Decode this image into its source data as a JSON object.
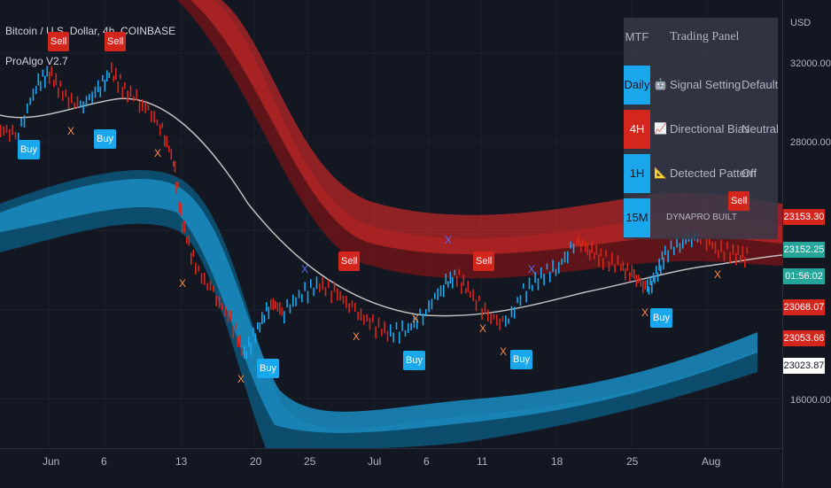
{
  "header": {
    "symbol_line": "Bitcoin / U.S. Dollar, 4h, COINBASE",
    "indicator_name": "ProAlgo V2.7"
  },
  "axis": {
    "currency": "USD",
    "y_labels": [
      "32000.00",
      "28000.00",
      "16000.00"
    ],
    "x_labels": [
      "Jun",
      "6",
      "13",
      "20",
      "25",
      "Jul",
      "6",
      "11",
      "18",
      "25",
      "Aug"
    ]
  },
  "price_tags": [
    {
      "label": "23153.30",
      "color": "#d5261e"
    },
    {
      "label": "23152.25",
      "color": "#26a69a"
    },
    {
      "label": "01:56:02",
      "color": "#26a69a"
    },
    {
      "label": "23068.07",
      "color": "#d5261e"
    },
    {
      "label": "23053.66",
      "color": "#d5261e"
    },
    {
      "label": "23023.87",
      "color": "#ffffff"
    }
  ],
  "panel": {
    "col_mtf": "MTF",
    "title": "Trading Panel",
    "rows": [
      {
        "tf": "Daily",
        "tf_color": "#1aa7ec",
        "icon": "robot-icon",
        "glyph": "🤖",
        "name": "Signal Setting",
        "value": "Default"
      },
      {
        "tf": "4H",
        "tf_color": "#d5261e",
        "icon": "chart-trend-icon",
        "glyph": "📈",
        "name": "Directional Bias",
        "value": "Neutral"
      },
      {
        "tf": "1H",
        "tf_color": "#1aa7ec",
        "icon": "triangle-ruler-icon",
        "glyph": "📐",
        "name": "Detected Pattern",
        "value": "Off"
      },
      {
        "tf": "15M",
        "tf_color": "#1aa7ec",
        "icon": "",
        "glyph": "",
        "name": "DYNAPRO BUILT",
        "value": ""
      }
    ]
  },
  "signals": {
    "buy": "Buy",
    "sell": "Sell",
    "x": "X"
  },
  "colors": {
    "bull": "#1aa7ec",
    "bear": "#d5261e",
    "band_red": "#b71c1c",
    "band_blue": "#0e6e99",
    "ma": "#c0c0c0"
  }
}
